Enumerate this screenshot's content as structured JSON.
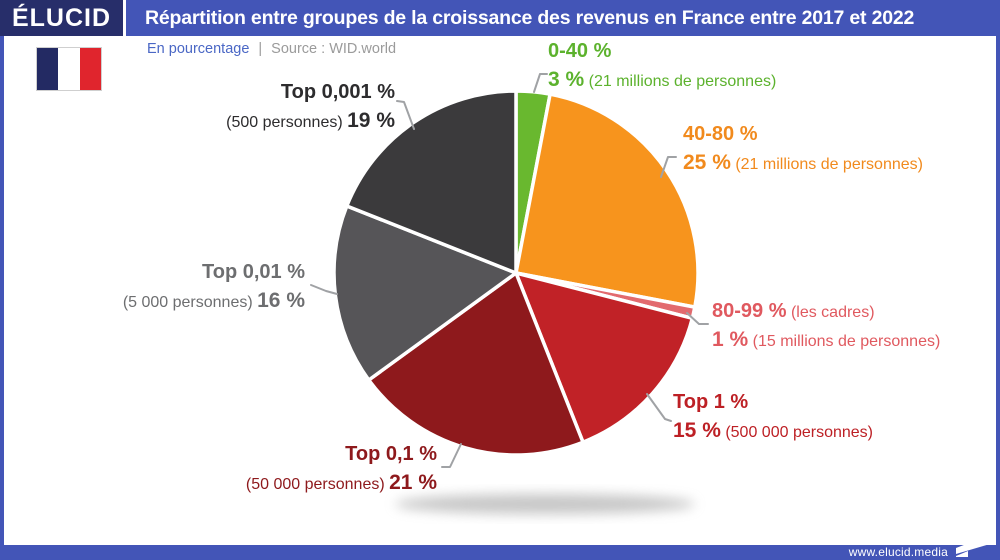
{
  "header": {
    "brand": "ÉLUCID",
    "title": "Répartition entre groupes de la croissance des revenus en France entre 2017 et 2022"
  },
  "subheader": {
    "unit_label": "En pourcentage",
    "separator": "|",
    "source_label": "Source : WID.world"
  },
  "flag": {
    "name": "french-flag",
    "colors": [
      "#232a63",
      "#ffffff",
      "#e0252d"
    ]
  },
  "footer": {
    "website": "www.elucid.media"
  },
  "colors": {
    "frame_blue": "#4355b7",
    "brand_navy": "#272e6a",
    "subtitle_blue": "#4a67c5",
    "subtitle_gray": "#9b9b9b",
    "leader_gray": "#a0a2a5"
  },
  "chart_data": {
    "type": "pie",
    "title": "Répartition entre groupes de la croissance des revenus en France entre 2017 et 2022",
    "unit": "En pourcentage",
    "source": "WID.world",
    "start_angle_deg": 0,
    "direction": "clockwise",
    "slices": [
      {
        "label": "0-40 %",
        "label_note": "",
        "value": 3,
        "value_label": "3 %",
        "detail": "(21 millions de personnes)",
        "color": "#69b82f",
        "text_color": "#5cb22d"
      },
      {
        "label": "40-80 %",
        "label_note": "",
        "value": 25,
        "value_label": "25 %",
        "detail": "(21 millions de personnes)",
        "color": "#f7941d",
        "text_color": "#f18a1d"
      },
      {
        "label": "80-99 %",
        "label_note": "(les cadres)",
        "value": 1,
        "value_label": "1 %",
        "detail": "(15 millions de personnes)",
        "color": "#e26a6e",
        "text_color": "#e0595f"
      },
      {
        "label": "Top 1 %",
        "label_note": "",
        "value": 15,
        "value_label": "15 %",
        "detail": "(500 000 personnes)",
        "color": "#c12227",
        "text_color": "#bd2025"
      },
      {
        "label": "Top 0,1 %",
        "label_note": "",
        "value": 21,
        "value_label": "21 %",
        "detail": "(50 000 personnes)",
        "color": "#8e191c",
        "text_color": "#8e191c"
      },
      {
        "label": "Top 0,01 %",
        "label_note": "",
        "value": 16,
        "value_label": "16 %",
        "detail": "(5 000 personnes)",
        "color": "#565558",
        "text_color": "#6d6e70"
      },
      {
        "label": "Top 0,001 %",
        "label_note": "",
        "value": 19,
        "value_label": "19 %",
        "detail": "(500 personnes)",
        "color": "#3b3a3c",
        "text_color": "#2d2c2e"
      }
    ]
  }
}
